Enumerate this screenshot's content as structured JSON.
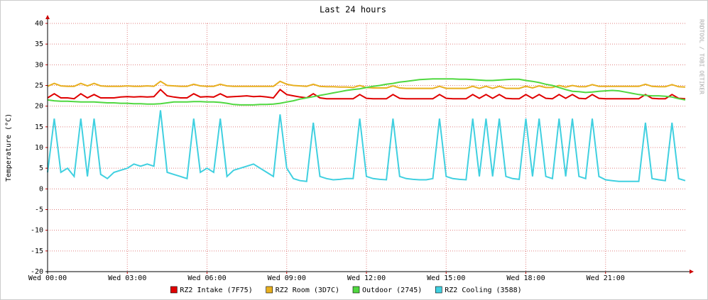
{
  "chart_data": {
    "type": "line",
    "title": "Last 24 hours",
    "y_label": "Temperature (°C)",
    "watermark": "RRDTOOL / TOBI OETIKER",
    "xlim": [
      0,
      24
    ],
    "xticks": [
      {
        "value": 0,
        "label": "Wed 00:00"
      },
      {
        "value": 3,
        "label": "Wed 03:00"
      },
      {
        "value": 6,
        "label": "Wed 06:00"
      },
      {
        "value": 9,
        "label": "Wed 09:00"
      },
      {
        "value": 12,
        "label": "Wed 12:00"
      },
      {
        "value": 15,
        "label": "Wed 15:00"
      },
      {
        "value": 18,
        "label": "Wed 18:00"
      },
      {
        "value": 21,
        "label": "Wed 21:00"
      }
    ],
    "ylim": [
      -20,
      40
    ],
    "yticks": [
      -20,
      -15,
      -10,
      -5,
      0,
      5,
      10,
      15,
      20,
      25,
      30,
      35,
      40
    ],
    "grid": true,
    "legend": "bottom",
    "x": [
      0,
      0.25,
      0.5,
      0.75,
      1,
      1.25,
      1.5,
      1.75,
      2,
      2.25,
      2.5,
      2.75,
      3,
      3.25,
      3.5,
      3.75,
      4,
      4.25,
      4.5,
      4.75,
      5,
      5.25,
      5.5,
      5.75,
      6,
      6.25,
      6.5,
      6.75,
      7,
      7.25,
      7.5,
      7.75,
      8,
      8.25,
      8.5,
      8.75,
      9,
      9.25,
      9.5,
      9.75,
      10,
      10.25,
      10.5,
      10.75,
      11,
      11.25,
      11.5,
      11.75,
      12,
      12.25,
      12.5,
      12.75,
      13,
      13.25,
      13.5,
      13.75,
      14,
      14.25,
      14.5,
      14.75,
      15,
      15.25,
      15.5,
      15.75,
      16,
      16.25,
      16.5,
      16.75,
      17,
      17.25,
      17.5,
      17.75,
      18,
      18.25,
      18.5,
      18.75,
      19,
      19.25,
      19.5,
      19.75,
      20,
      20.25,
      20.5,
      20.75,
      21,
      21.25,
      21.5,
      21.75,
      22,
      22.25,
      22.5,
      22.75,
      23,
      23.25,
      23.5,
      23.75,
      24
    ],
    "series": [
      {
        "name": "RZ2 Intake (7F75)",
        "color": "#e00000",
        "values": [
          22,
          23,
          22,
          22,
          21.8,
          23,
          22,
          22.8,
          22,
          22,
          22,
          22.2,
          22.3,
          22.2,
          22.3,
          22.2,
          22.3,
          24,
          22.5,
          22.2,
          22,
          22,
          23,
          22.2,
          22.3,
          22.2,
          23,
          22.2,
          22.3,
          22.4,
          22.5,
          22.3,
          22.4,
          22.2,
          22,
          24,
          22.8,
          22.5,
          22.2,
          22,
          23,
          22,
          21.8,
          21.8,
          21.8,
          21.8,
          21.8,
          22.8,
          21.9,
          21.8,
          21.8,
          21.8,
          22.8,
          21.9,
          21.8,
          21.8,
          21.8,
          21.8,
          21.8,
          22.8,
          21.9,
          21.8,
          21.8,
          21.8,
          22.8,
          21.9,
          22.8,
          21.9,
          22.8,
          21.9,
          21.8,
          21.8,
          22.8,
          21.9,
          22.8,
          21.9,
          21.8,
          22.8,
          21.9,
          22.8,
          21.9,
          21.8,
          22.8,
          21.9,
          21.8,
          21.8,
          21.8,
          21.8,
          21.8,
          21.8,
          22.8,
          21.9,
          21.8,
          21.8,
          22.8,
          21.9,
          21.8
        ]
      },
      {
        "name": "RZ2 Room (3D7C)",
        "color": "#e8b020",
        "values": [
          24.8,
          25.5,
          24.9,
          24.8,
          24.8,
          25.5,
          24.9,
          25.5,
          24.9,
          24.8,
          24.8,
          24.8,
          24.9,
          24.8,
          24.8,
          24.9,
          24.8,
          26,
          25,
          24.9,
          24.8,
          24.8,
          25.3,
          24.9,
          24.8,
          24.8,
          25.3,
          24.9,
          24.8,
          24.8,
          24.8,
          24.8,
          24.8,
          24.8,
          24.8,
          26,
          25.3,
          25,
          24.9,
          24.8,
          25.3,
          24.8,
          24.7,
          24.7,
          24.6,
          24.6,
          24.5,
          25,
          24.5,
          24.4,
          24.4,
          24.4,
          24.9,
          24.4,
          24.3,
          24.3,
          24.3,
          24.3,
          24.3,
          24.8,
          24.3,
          24.3,
          24.3,
          24.3,
          24.8,
          24.3,
          24.8,
          24.3,
          24.8,
          24.3,
          24.3,
          24.3,
          24.8,
          24.4,
          24.9,
          24.5,
          24.5,
          25,
          24.6,
          25,
          24.7,
          24.7,
          25.2,
          24.8,
          24.8,
          24.8,
          24.8,
          24.8,
          24.8,
          24.8,
          25.3,
          24.8,
          24.7,
          24.7,
          25.2,
          24.7,
          24.6
        ]
      },
      {
        "name": "Outdoor (2745)",
        "color": "#50d840",
        "values": [
          21.5,
          21.3,
          21.2,
          21.2,
          21.1,
          21,
          21,
          21,
          20.9,
          20.8,
          20.8,
          20.7,
          20.7,
          20.6,
          20.6,
          20.5,
          20.5,
          20.6,
          20.8,
          21,
          21,
          21,
          21.1,
          21.1,
          21,
          21,
          20.9,
          20.7,
          20.4,
          20.3,
          20.3,
          20.3,
          20.4,
          20.4,
          20.5,
          20.7,
          21,
          21.3,
          21.7,
          22,
          22.3,
          22.6,
          22.9,
          23.2,
          23.5,
          23.8,
          24,
          24.2,
          24.5,
          24.8,
          25,
          25.3,
          25.5,
          25.8,
          26,
          26.2,
          26.4,
          26.5,
          26.6,
          26.6,
          26.6,
          26.6,
          26.5,
          26.5,
          26.4,
          26.3,
          26.2,
          26.2,
          26.3,
          26.4,
          26.5,
          26.5,
          26.2,
          26,
          25.7,
          25.3,
          25,
          24.5,
          24,
          23.6,
          23.5,
          23.3,
          23.4,
          23.6,
          23.7,
          23.8,
          23.7,
          23.4,
          23.1,
          22.8,
          22.6,
          22.5,
          22.5,
          22.4,
          22.2,
          21.8,
          21.5
        ]
      },
      {
        "name": "RZ2 Cooling (3588)",
        "color": "#40d0e0",
        "values": [
          4,
          17,
          4,
          5,
          3,
          17,
          3,
          17,
          3.5,
          2.5,
          4,
          4.5,
          5,
          6,
          5.5,
          6,
          5.5,
          19,
          4,
          3.5,
          3,
          2.5,
          17,
          4,
          5,
          4,
          17,
          3,
          4.5,
          5,
          5.5,
          6,
          5,
          4,
          3,
          18,
          5,
          2.5,
          2,
          1.8,
          16,
          3,
          2.5,
          2.2,
          2.3,
          2.5,
          2.5,
          17,
          3,
          2.5,
          2.3,
          2.2,
          17,
          3,
          2.5,
          2.3,
          2.2,
          2.2,
          2.5,
          17,
          3,
          2.5,
          2.3,
          2.2,
          17,
          3,
          17,
          3,
          17,
          3,
          2.5,
          2.3,
          17,
          3,
          17,
          3,
          2.5,
          17,
          3,
          17,
          3,
          2.5,
          17,
          3,
          2.2,
          2,
          1.8,
          1.8,
          1.8,
          1.8,
          16,
          2.5,
          2.2,
          2,
          16,
          2.5,
          2
        ]
      }
    ]
  }
}
